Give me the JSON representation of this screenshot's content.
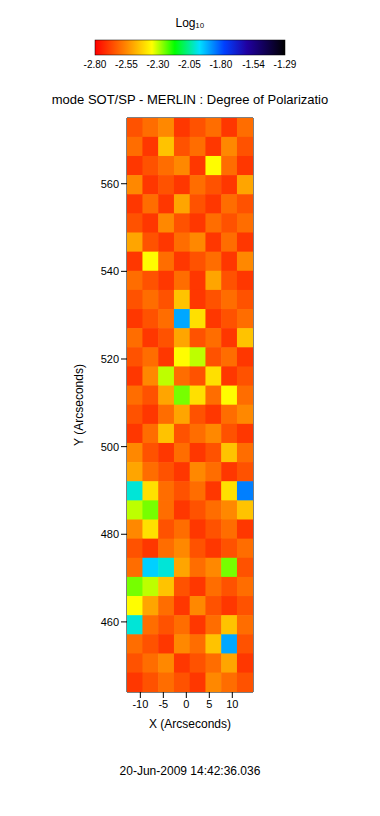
{
  "chart_data": {
    "type": "heatmap",
    "title": "mode SOT/SP - MERLIN : Degree of Polarizatio",
    "annotation": "20-Jun-2009 14:42:36.036",
    "x_label": "X (Arcseconds)",
    "y_label": "Y (Arcseconds)",
    "xlim": [
      -12.9,
      14.5
    ],
    "ylim": [
      444,
      575
    ],
    "xticks": [
      -10,
      -5,
      0,
      5,
      10
    ],
    "yticks": [
      460,
      480,
      500,
      520,
      540,
      560
    ],
    "cells": [
      [
        -2.65,
        -2.6,
        -2.55,
        -2.7,
        -2.65,
        -2.6,
        -2.7,
        -2.6
      ],
      [
        -2.6,
        -2.7,
        -2.45,
        -2.65,
        -2.6,
        -2.7,
        -2.55,
        -2.65
      ],
      [
        -2.7,
        -2.65,
        -2.6,
        -2.55,
        -2.7,
        -2.35,
        -2.6,
        -2.7
      ],
      [
        -2.55,
        -2.7,
        -2.65,
        -2.7,
        -2.6,
        -2.65,
        -2.7,
        -2.5
      ],
      [
        -2.7,
        -2.6,
        -2.7,
        -2.5,
        -2.65,
        -2.7,
        -2.6,
        -2.65
      ],
      [
        -2.65,
        -2.7,
        -2.55,
        -2.65,
        -2.7,
        -2.6,
        -2.65,
        -2.6
      ],
      [
        -2.5,
        -2.65,
        -2.7,
        -2.6,
        -2.55,
        -2.7,
        -2.6,
        -2.7
      ],
      [
        -2.7,
        -2.35,
        -2.6,
        -2.7,
        -2.65,
        -2.6,
        -2.7,
        -2.55
      ],
      [
        -2.6,
        -2.65,
        -2.7,
        -2.6,
        -2.7,
        -2.5,
        -2.65,
        -2.7
      ],
      [
        -2.65,
        -2.6,
        -2.65,
        -2.45,
        -2.7,
        -2.65,
        -2.6,
        -2.65
      ],
      [
        -2.7,
        -2.65,
        -2.6,
        -1.9,
        -2.4,
        -2.7,
        -2.65,
        -2.6
      ],
      [
        -2.6,
        -2.7,
        -2.65,
        -2.5,
        -2.65,
        -2.6,
        -2.7,
        -2.45
      ],
      [
        -2.65,
        -2.6,
        -2.7,
        -2.35,
        -2.3,
        -2.65,
        -2.6,
        -2.7
      ],
      [
        -2.7,
        -2.55,
        -2.3,
        -2.6,
        -2.65,
        -2.4,
        -2.7,
        -2.65
      ],
      [
        -2.6,
        -2.65,
        -2.5,
        -2.25,
        -2.4,
        -2.6,
        -2.35,
        -2.6
      ],
      [
        -2.65,
        -2.7,
        -2.6,
        -2.5,
        -2.65,
        -2.7,
        -2.6,
        -2.55
      ],
      [
        -2.7,
        -2.6,
        -2.45,
        -2.65,
        -2.6,
        -2.55,
        -2.65,
        -2.7
      ],
      [
        -2.55,
        -2.65,
        -2.7,
        -2.6,
        -2.7,
        -2.65,
        -2.45,
        -2.6
      ],
      [
        -2.5,
        -2.6,
        -2.65,
        -2.7,
        -2.55,
        -2.6,
        -2.7,
        -2.65
      ],
      [
        -2.0,
        -2.4,
        -2.6,
        -2.65,
        -2.6,
        -2.7,
        -2.4,
        -1.85
      ],
      [
        -2.3,
        -2.25,
        -2.6,
        -2.7,
        -2.65,
        -2.6,
        -2.55,
        -2.45
      ],
      [
        -2.55,
        -2.4,
        -2.65,
        -2.6,
        -2.7,
        -2.65,
        -2.6,
        -2.7
      ],
      [
        -2.65,
        -2.7,
        -2.6,
        -2.55,
        -2.65,
        -2.7,
        -2.65,
        -2.6
      ],
      [
        -2.6,
        -1.95,
        -2.0,
        -2.5,
        -2.6,
        -2.55,
        -2.25,
        -2.65
      ],
      [
        -2.25,
        -2.3,
        -2.45,
        -2.65,
        -2.7,
        -2.6,
        -2.65,
        -2.6
      ],
      [
        -2.35,
        -2.5,
        -2.6,
        -2.7,
        -2.55,
        -2.65,
        -2.7,
        -2.65
      ],
      [
        -2.0,
        -2.6,
        -2.65,
        -2.6,
        -2.7,
        -2.6,
        -2.45,
        -2.6
      ],
      [
        -2.6,
        -2.65,
        -2.7,
        -2.55,
        -2.6,
        -2.45,
        -1.9,
        -2.65
      ],
      [
        -2.65,
        -2.6,
        -2.55,
        -2.7,
        -2.65,
        -2.6,
        -2.5,
        -2.7
      ],
      [
        -2.7,
        -2.65,
        -2.6,
        -2.65,
        -2.7,
        -2.55,
        -2.6,
        -2.65
      ]
    ],
    "colorbar": {
      "title": "Log₁₀",
      "range": [
        -2.8,
        -1.29
      ],
      "ticks": [
        {
          "value": -2.8,
          "label": "-2.80"
        },
        -2.55,
        {
          "value": -2.3,
          "label": "-2.30"
        },
        -2.05,
        {
          "value": -1.8,
          "label": "-1.80"
        },
        -1.54,
        -1.29
      ]
    }
  }
}
